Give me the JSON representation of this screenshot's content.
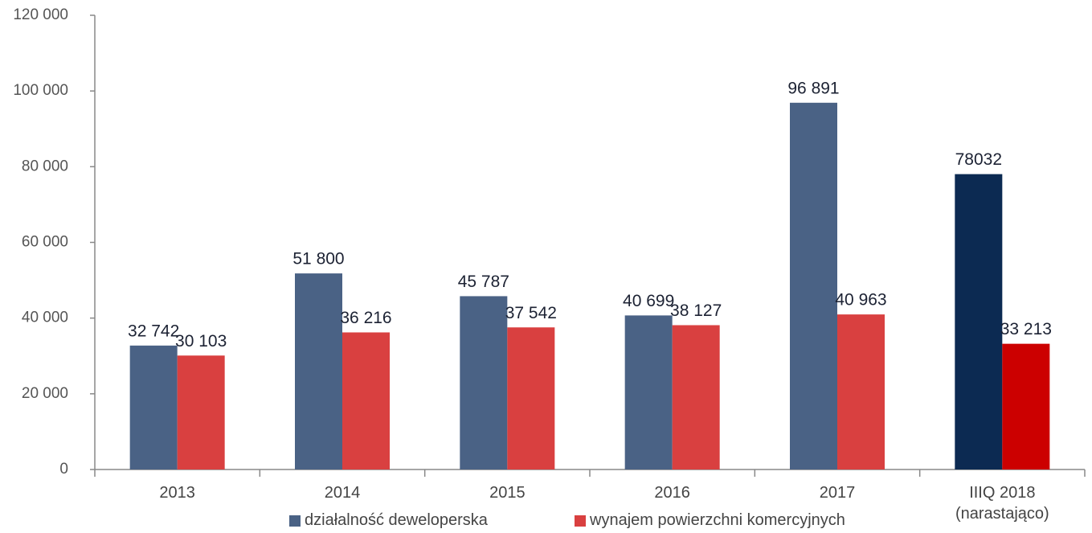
{
  "chart_data": {
    "type": "bar",
    "categories": [
      "2013",
      "2014",
      "2015",
      "2016",
      "2017",
      "IIIQ 2018\n(narastająco)"
    ],
    "series": [
      {
        "name": "działalność deweloperska",
        "color": "#4a6285",
        "colors": [
          "#4a6285",
          "#4a6285",
          "#4a6285",
          "#4a6285",
          "#4a6285",
          "#0c2a52"
        ],
        "values": [
          32742,
          51800,
          45787,
          40699,
          96891,
          78032
        ],
        "value_labels": [
          "32 742",
          "51 800",
          "45 787",
          "40 699",
          "96 891",
          "78032"
        ]
      },
      {
        "name": "wynajem powierzchni komercyjnych",
        "color": "#d94040",
        "colors": [
          "#d94040",
          "#d94040",
          "#d94040",
          "#d94040",
          "#d94040",
          "#cc0000"
        ],
        "values": [
          30103,
          36216,
          37542,
          38127,
          40963,
          33213
        ],
        "value_labels": [
          "30 103",
          "36 216",
          "37 542",
          "38 127",
          "40 963",
          "33 213"
        ]
      }
    ],
    "ylim": [
      0,
      120000
    ],
    "yticks": [
      0,
      {
        "value": 20000,
        "label": "20 000"
      },
      {
        "value": 40000,
        "label": "40 000"
      },
      {
        "value": 60000,
        "label": "60 000"
      },
      {
        "value": 80000,
        "label": "80 000"
      },
      {
        "value": 100000,
        "label": "100 000"
      },
      {
        "value": 120000,
        "label": "120 000"
      }
    ],
    "legend": "bottom",
    "grid": false
  }
}
